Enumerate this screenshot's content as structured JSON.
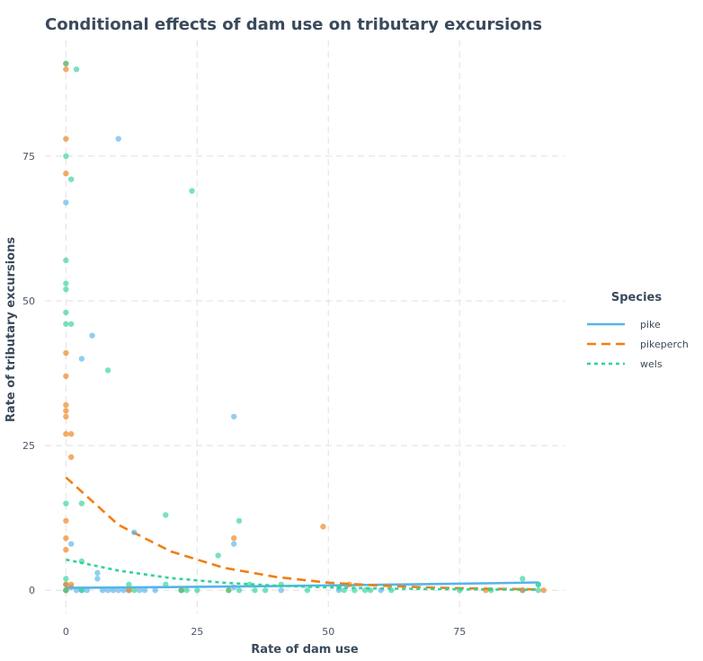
{
  "chart_data": {
    "type": "scatter",
    "title": "Conditional effects of dam use on tributary excursions",
    "xlabel": "Rate of dam use",
    "ylabel": "Rate of tributary excursions",
    "xlim": [
      -4,
      95
    ],
    "ylim": [
      -4,
      95
    ],
    "xticks": [
      0,
      25,
      50,
      75
    ],
    "yticks": [
      0,
      25,
      50,
      75
    ],
    "grid": true,
    "legend": {
      "title": "Species",
      "placement": "right"
    },
    "series": [
      {
        "name": "pike",
        "color": "#56b4e9",
        "line_style": "solid",
        "points": [
          [
            0,
            67
          ],
          [
            1,
            8
          ],
          [
            10,
            78
          ],
          [
            5,
            44
          ],
          [
            3,
            40
          ],
          [
            32,
            30
          ],
          [
            13,
            10
          ],
          [
            32,
            8
          ],
          [
            6,
            3
          ],
          [
            6,
            2
          ],
          [
            0,
            1
          ],
          [
            1,
            0.5
          ],
          [
            3,
            0
          ],
          [
            4,
            0
          ],
          [
            7,
            0
          ],
          [
            8,
            0
          ],
          [
            9,
            0
          ],
          [
            10,
            0
          ],
          [
            11,
            0
          ],
          [
            12,
            0
          ],
          [
            14,
            0
          ],
          [
            15,
            0
          ],
          [
            17,
            0
          ],
          [
            22,
            0
          ],
          [
            32,
            0.5
          ],
          [
            41,
            0
          ],
          [
            52,
            0
          ],
          [
            60,
            0
          ],
          [
            0,
            0
          ],
          [
            2,
            0
          ],
          [
            90,
            1
          ],
          [
            87,
            0
          ]
        ],
        "fit": [
          [
            0,
            0.4
          ],
          [
            20,
            0.55
          ],
          [
            40,
            0.72
          ],
          [
            60,
            0.95
          ],
          [
            80,
            1.2
          ],
          [
            90,
            1.35
          ]
        ]
      },
      {
        "name": "pikeperch",
        "color": "#f07f12",
        "line_style": "dashed",
        "points": [
          [
            0,
            91
          ],
          [
            0,
            90
          ],
          [
            0,
            78
          ],
          [
            0,
            72
          ],
          [
            0,
            41
          ],
          [
            0,
            37
          ],
          [
            0,
            32
          ],
          [
            0,
            31
          ],
          [
            0,
            30
          ],
          [
            0,
            27
          ],
          [
            1,
            27
          ],
          [
            1,
            23
          ],
          [
            0,
            12
          ],
          [
            0,
            9
          ],
          [
            0,
            7
          ],
          [
            49,
            11
          ],
          [
            32,
            9
          ],
          [
            0,
            1
          ],
          [
            1,
            1
          ],
          [
            0,
            0
          ],
          [
            12,
            0
          ],
          [
            22,
            0
          ],
          [
            31,
            0
          ],
          [
            54,
            1
          ],
          [
            80,
            0
          ],
          [
            87,
            0
          ],
          [
            91,
            0
          ]
        ],
        "fit": [
          [
            0,
            19.5
          ],
          [
            10,
            11.3
          ],
          [
            20,
            6.7
          ],
          [
            30,
            3.9
          ],
          [
            40,
            2.3
          ],
          [
            50,
            1.3
          ],
          [
            60,
            0.8
          ],
          [
            70,
            0.45
          ],
          [
            80,
            0.27
          ],
          [
            90,
            0.16
          ]
        ]
      },
      {
        "name": "wels",
        "color": "#2fd39a",
        "line_style": "dotted",
        "points": [
          [
            0,
            91
          ],
          [
            2,
            90
          ],
          [
            0,
            75
          ],
          [
            1,
            71
          ],
          [
            24,
            69
          ],
          [
            0,
            57
          ],
          [
            0,
            53
          ],
          [
            0,
            52
          ],
          [
            0,
            48
          ],
          [
            0,
            46
          ],
          [
            1,
            46
          ],
          [
            8,
            38
          ],
          [
            0,
            15
          ],
          [
            3,
            15
          ],
          [
            19,
            13
          ],
          [
            33,
            12
          ],
          [
            29,
            6
          ],
          [
            3,
            5
          ],
          [
            0,
            2
          ],
          [
            12,
            1
          ],
          [
            19,
            1
          ],
          [
            0,
            0
          ],
          [
            3,
            0
          ],
          [
            13,
            0
          ],
          [
            22,
            0
          ],
          [
            23,
            0
          ],
          [
            25,
            0
          ],
          [
            31,
            0
          ],
          [
            33,
            0
          ],
          [
            35,
            1
          ],
          [
            36,
            0
          ],
          [
            38,
            0
          ],
          [
            41,
            1
          ],
          [
            46,
            0
          ],
          [
            52,
            0.5
          ],
          [
            53,
            0
          ],
          [
            55,
            0
          ],
          [
            57,
            0
          ],
          [
            58,
            0
          ],
          [
            62,
            0
          ],
          [
            75,
            0
          ],
          [
            81,
            0
          ],
          [
            87,
            2
          ],
          [
            90,
            0
          ],
          [
            90,
            1
          ]
        ],
        "fit": [
          [
            0,
            5.3
          ],
          [
            10,
            3.4
          ],
          [
            20,
            2.1
          ],
          [
            30,
            1.3
          ],
          [
            40,
            0.8
          ],
          [
            50,
            0.5
          ],
          [
            60,
            0.3
          ],
          [
            70,
            0.2
          ],
          [
            80,
            0.12
          ],
          [
            90,
            0.08
          ]
        ]
      }
    ]
  }
}
